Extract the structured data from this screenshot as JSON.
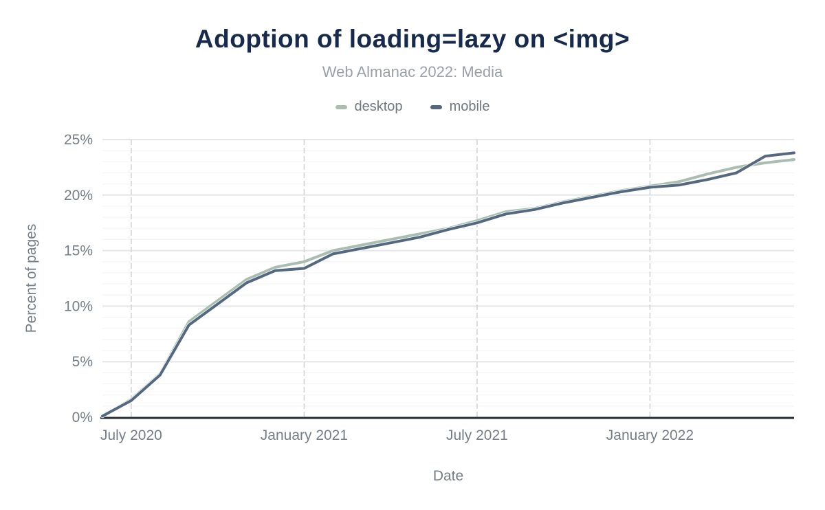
{
  "chart_data": {
    "type": "line",
    "title": "Adoption of loading=lazy on <img>",
    "subtitle": "Web Almanac 2022: Media",
    "xlabel": "Date",
    "ylabel": "Percent of pages",
    "unit": "%",
    "legend_position": "top-center",
    "x": [
      "2020-06",
      "2020-07",
      "2020-08",
      "2020-09",
      "2020-10",
      "2020-11",
      "2020-12",
      "2021-01",
      "2021-02",
      "2021-03",
      "2021-04",
      "2021-05",
      "2021-06",
      "2021-07",
      "2021-08",
      "2021-09",
      "2021-10",
      "2021-11",
      "2021-12",
      "2022-01",
      "2022-02",
      "2022-03",
      "2022-04",
      "2022-05",
      "2022-06"
    ],
    "x_tick_indices": [
      1,
      7,
      13,
      19
    ],
    "x_tick_labels": [
      "July 2020",
      "January 2021",
      "July 2021",
      "January 2022"
    ],
    "y_ticks": [
      0,
      5,
      10,
      15,
      20,
      25
    ],
    "y_tick_labels": [
      "0%",
      "5%",
      "10%",
      "15%",
      "20%",
      "25%"
    ],
    "ylim": [
      0,
      25
    ],
    "grid": {
      "horizontal_major_step": 5,
      "horizontal_minor_step": 1,
      "vertical_style": "dashed"
    },
    "series": [
      {
        "name": "desktop",
        "color": "#a9bdb1",
        "values": [
          0.1,
          1.6,
          3.9,
          8.6,
          10.5,
          12.4,
          13.5,
          14.0,
          15.0,
          15.5,
          16.0,
          16.5,
          17.0,
          17.7,
          18.5,
          18.8,
          19.4,
          19.9,
          20.4,
          20.8,
          21.2,
          21.9,
          22.5,
          22.9,
          23.2
        ]
      },
      {
        "name": "mobile",
        "color": "#54687f",
        "values": [
          0.1,
          1.5,
          3.8,
          8.3,
          10.2,
          12.1,
          13.2,
          13.4,
          14.7,
          15.2,
          15.7,
          16.2,
          16.9,
          17.5,
          18.3,
          18.7,
          19.3,
          19.8,
          20.3,
          20.7,
          20.9,
          21.4,
          22.0,
          23.5,
          23.8
        ]
      }
    ]
  },
  "style": {
    "background": "#ffffff",
    "title_color": "#152a4d",
    "subtitle_color": "#9aa0a6",
    "tick_label_color": "#757e87",
    "axis_title_color": "#757e87",
    "legend_text_color": "#6f7780",
    "axis_line_color": "#262b33",
    "major_grid_color": "#e3e5e7",
    "minor_grid_color": "#f3f4f5",
    "vertical_grid_color": "#ced1d4"
  }
}
